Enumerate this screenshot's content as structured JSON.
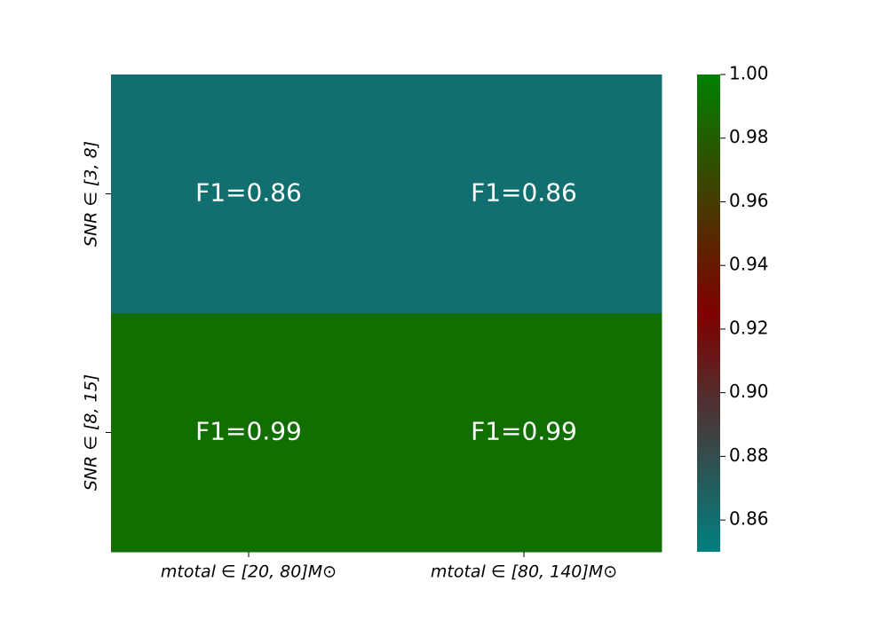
{
  "chart_data": {
    "type": "heatmap",
    "x_categories": [
      "mtotal ∈ [20, 80]M⊙",
      "mtotal ∈ [80, 140]M⊙"
    ],
    "y_categories": [
      "SNR ∈ [3, 8]",
      "SNR ∈ [8, 15]"
    ],
    "values": [
      [
        0.86,
        0.86
      ],
      [
        0.99,
        0.99
      ]
    ],
    "value_labels": [
      [
        "F1=0.86",
        "F1=0.86"
      ],
      [
        "F1=0.99",
        "F1=0.99"
      ]
    ],
    "colormap": [
      "#008080",
      "#800000",
      "#008000"
    ],
    "clim": [
      0.85,
      1.0
    ],
    "cticks": [
      0.86,
      0.88,
      {
        "value": 0.9,
        "label": "0.90"
      },
      0.92,
      0.94,
      0.96,
      0.98,
      {
        "value": 1.0,
        "label": "1.00"
      }
    ]
  }
}
